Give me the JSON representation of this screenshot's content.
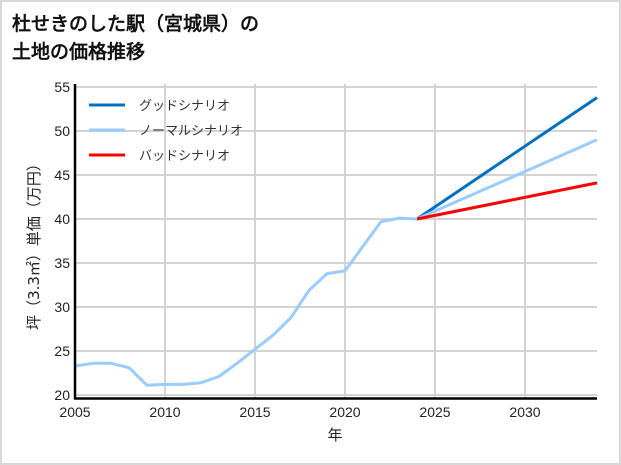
{
  "title_line1": "杜せきのした駅（宮城県）の",
  "title_line2": "土地の価格推移",
  "chart_data": {
    "type": "line",
    "title": "杜せきのした駅（宮城県）の土地の価格推移",
    "xlabel": "年",
    "ylabel": "坪（3.3㎡）単価（万円）",
    "xlim": [
      2005,
      2034
    ],
    "ylim": [
      20,
      55
    ],
    "grid": true,
    "legend_position": "upper left",
    "x_ticks": [
      2005,
      2010,
      2015,
      2020,
      2025,
      2030
    ],
    "y_ticks": [
      20,
      25,
      30,
      35,
      40,
      45,
      50,
      55
    ],
    "series": [
      {
        "name": "ノーマルシナリオ (実績)",
        "color": "#99ccff",
        "x": [
          2005,
          2006,
          2007,
          2008,
          2009,
          2010,
          2011,
          2012,
          2013,
          2014,
          2015,
          2016,
          2017,
          2018,
          2019,
          2020,
          2021,
          2022,
          2023,
          2024
        ],
        "values": [
          23.3,
          23.6,
          23.6,
          23.1,
          21.1,
          21.2,
          21.2,
          21.4,
          22.1,
          23.6,
          25.2,
          26.8,
          28.8,
          31.9,
          33.8,
          34.1,
          36.9,
          39.7,
          40.1,
          40.0
        ]
      },
      {
        "name": "グッドシナリオ",
        "color": "#0070c0",
        "x": [
          2024,
          2034
        ],
        "values": [
          40.0,
          53.8
        ]
      },
      {
        "name": "ノーマルシナリオ",
        "color": "#99ccff",
        "x": [
          2024,
          2034
        ],
        "values": [
          40.0,
          49.0
        ]
      },
      {
        "name": "バッドシナリオ",
        "color": "#ff0000",
        "x": [
          2024,
          2034
        ],
        "values": [
          40.0,
          44.1
        ]
      }
    ]
  },
  "legend": [
    {
      "label": "グッドシナリオ",
      "color": "#0070c0"
    },
    {
      "label": "ノーマルシナリオ",
      "color": "#99ccff"
    },
    {
      "label": "バッドシナリオ",
      "color": "#ff0000"
    }
  ],
  "axes": {
    "xlabel": "年",
    "ylabel": "坪（3.3㎡）単価（万円）",
    "x_tick_labels": [
      "2005",
      "2010",
      "2015",
      "2020",
      "2025",
      "2030"
    ],
    "y_tick_labels": [
      "20",
      "25",
      "30",
      "35",
      "40",
      "45",
      "50",
      "55"
    ]
  }
}
